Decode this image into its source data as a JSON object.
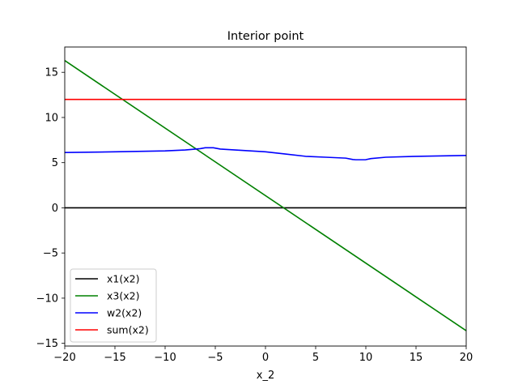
{
  "chart_data": {
    "type": "line",
    "title": "Interior point",
    "xlabel": "x_2",
    "ylabel": "",
    "xlim": [
      -20,
      20
    ],
    "ylim": [
      -15.3,
      17.8
    ],
    "xticks": [
      -20,
      -15,
      -10,
      -5,
      0,
      5,
      10,
      15,
      20
    ],
    "yticks": [
      -15,
      -10,
      -5,
      0,
      5,
      10,
      15
    ],
    "xtick_labels": [
      "−20",
      "−15",
      "−10",
      "−5",
      "0",
      "5",
      "10",
      "15",
      "20"
    ],
    "ytick_labels": [
      "−15",
      "−10",
      "−5",
      "0",
      "5",
      "10",
      "15"
    ],
    "grid": false,
    "legend_position": "lower-left",
    "series": [
      {
        "name": "x1(x2)",
        "color": "#000000",
        "x": [
          -20,
          20
        ],
        "y": [
          0,
          0
        ]
      },
      {
        "name": "x3(x2)",
        "color": "#008000",
        "x": [
          -20,
          20
        ],
        "y": [
          16.3,
          -13.6
        ]
      },
      {
        "name": "w2(x2)",
        "color": "#0000ff",
        "x": [
          -20,
          -15,
          -10,
          -8,
          -6.5,
          -6,
          -5.2,
          -4.5,
          -3,
          0,
          2,
          4,
          6,
          8,
          8.7,
          9,
          10,
          10.5,
          12,
          15,
          20
        ],
        "y": [
          6.12,
          6.2,
          6.3,
          6.4,
          6.55,
          6.65,
          6.65,
          6.5,
          6.4,
          6.2,
          5.95,
          5.7,
          5.6,
          5.5,
          5.35,
          5.32,
          5.33,
          5.45,
          5.6,
          5.7,
          5.8
        ]
      },
      {
        "name": "sum(x2)",
        "color": "#ff0000",
        "x": [
          -20,
          20
        ],
        "y": [
          12,
          12
        ]
      }
    ]
  }
}
